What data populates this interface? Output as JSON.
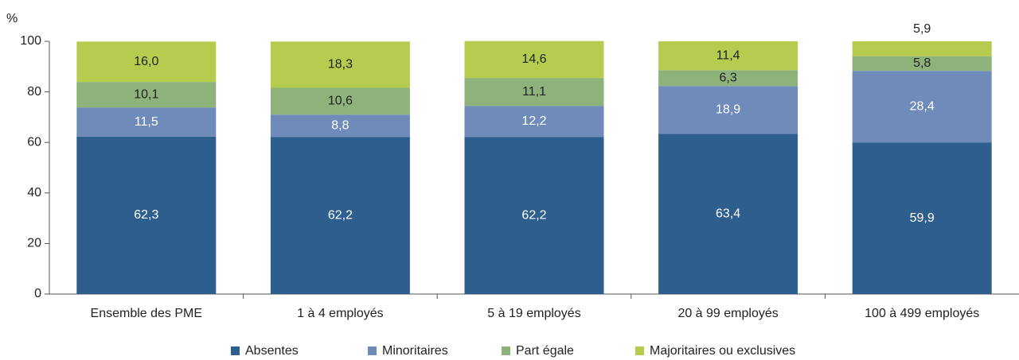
{
  "chart_data": {
    "type": "stacked_bar",
    "y_label": "%",
    "categories": [
      "Ensemble des PME",
      "1 à 4 employés",
      "5 à 19 employés",
      "20 à 99 employés",
      "100 à 499 employés"
    ],
    "series": [
      {
        "name": "Absentes",
        "color": "#2e5e8e",
        "values": [
          62.3,
          62.2,
          62.2,
          63.4,
          59.9
        ],
        "value_labels": [
          "62,3",
          "62,2",
          "62,2",
          "63,4",
          "59,9"
        ]
      },
      {
        "name": "Minoritaires",
        "color": "#6e8bba",
        "values": [
          11.5,
          8.8,
          12.2,
          18.9,
          28.4
        ],
        "value_labels": [
          "11,5",
          "8,8",
          "12,2",
          "18,9",
          "28,4"
        ]
      },
      {
        "name": "Part égale",
        "color": "#8db27a",
        "values": [
          10.1,
          10.6,
          11.1,
          6.3,
          5.8
        ],
        "value_labels": [
          "10,1",
          "10,6",
          "11,1",
          "6,3",
          "5,8"
        ]
      },
      {
        "name": "Majoritaires ou exclusives",
        "color": "#b5cc4f",
        "values": [
          16.0,
          18.3,
          14.6,
          11.4,
          5.9
        ],
        "value_labels": [
          "16,0",
          "18,3",
          "14,6",
          "11,4",
          "5,9"
        ]
      }
    ],
    "ylim": [
      0,
      100
    ],
    "yticks": [
      0,
      20,
      40,
      60,
      80,
      100
    ]
  }
}
